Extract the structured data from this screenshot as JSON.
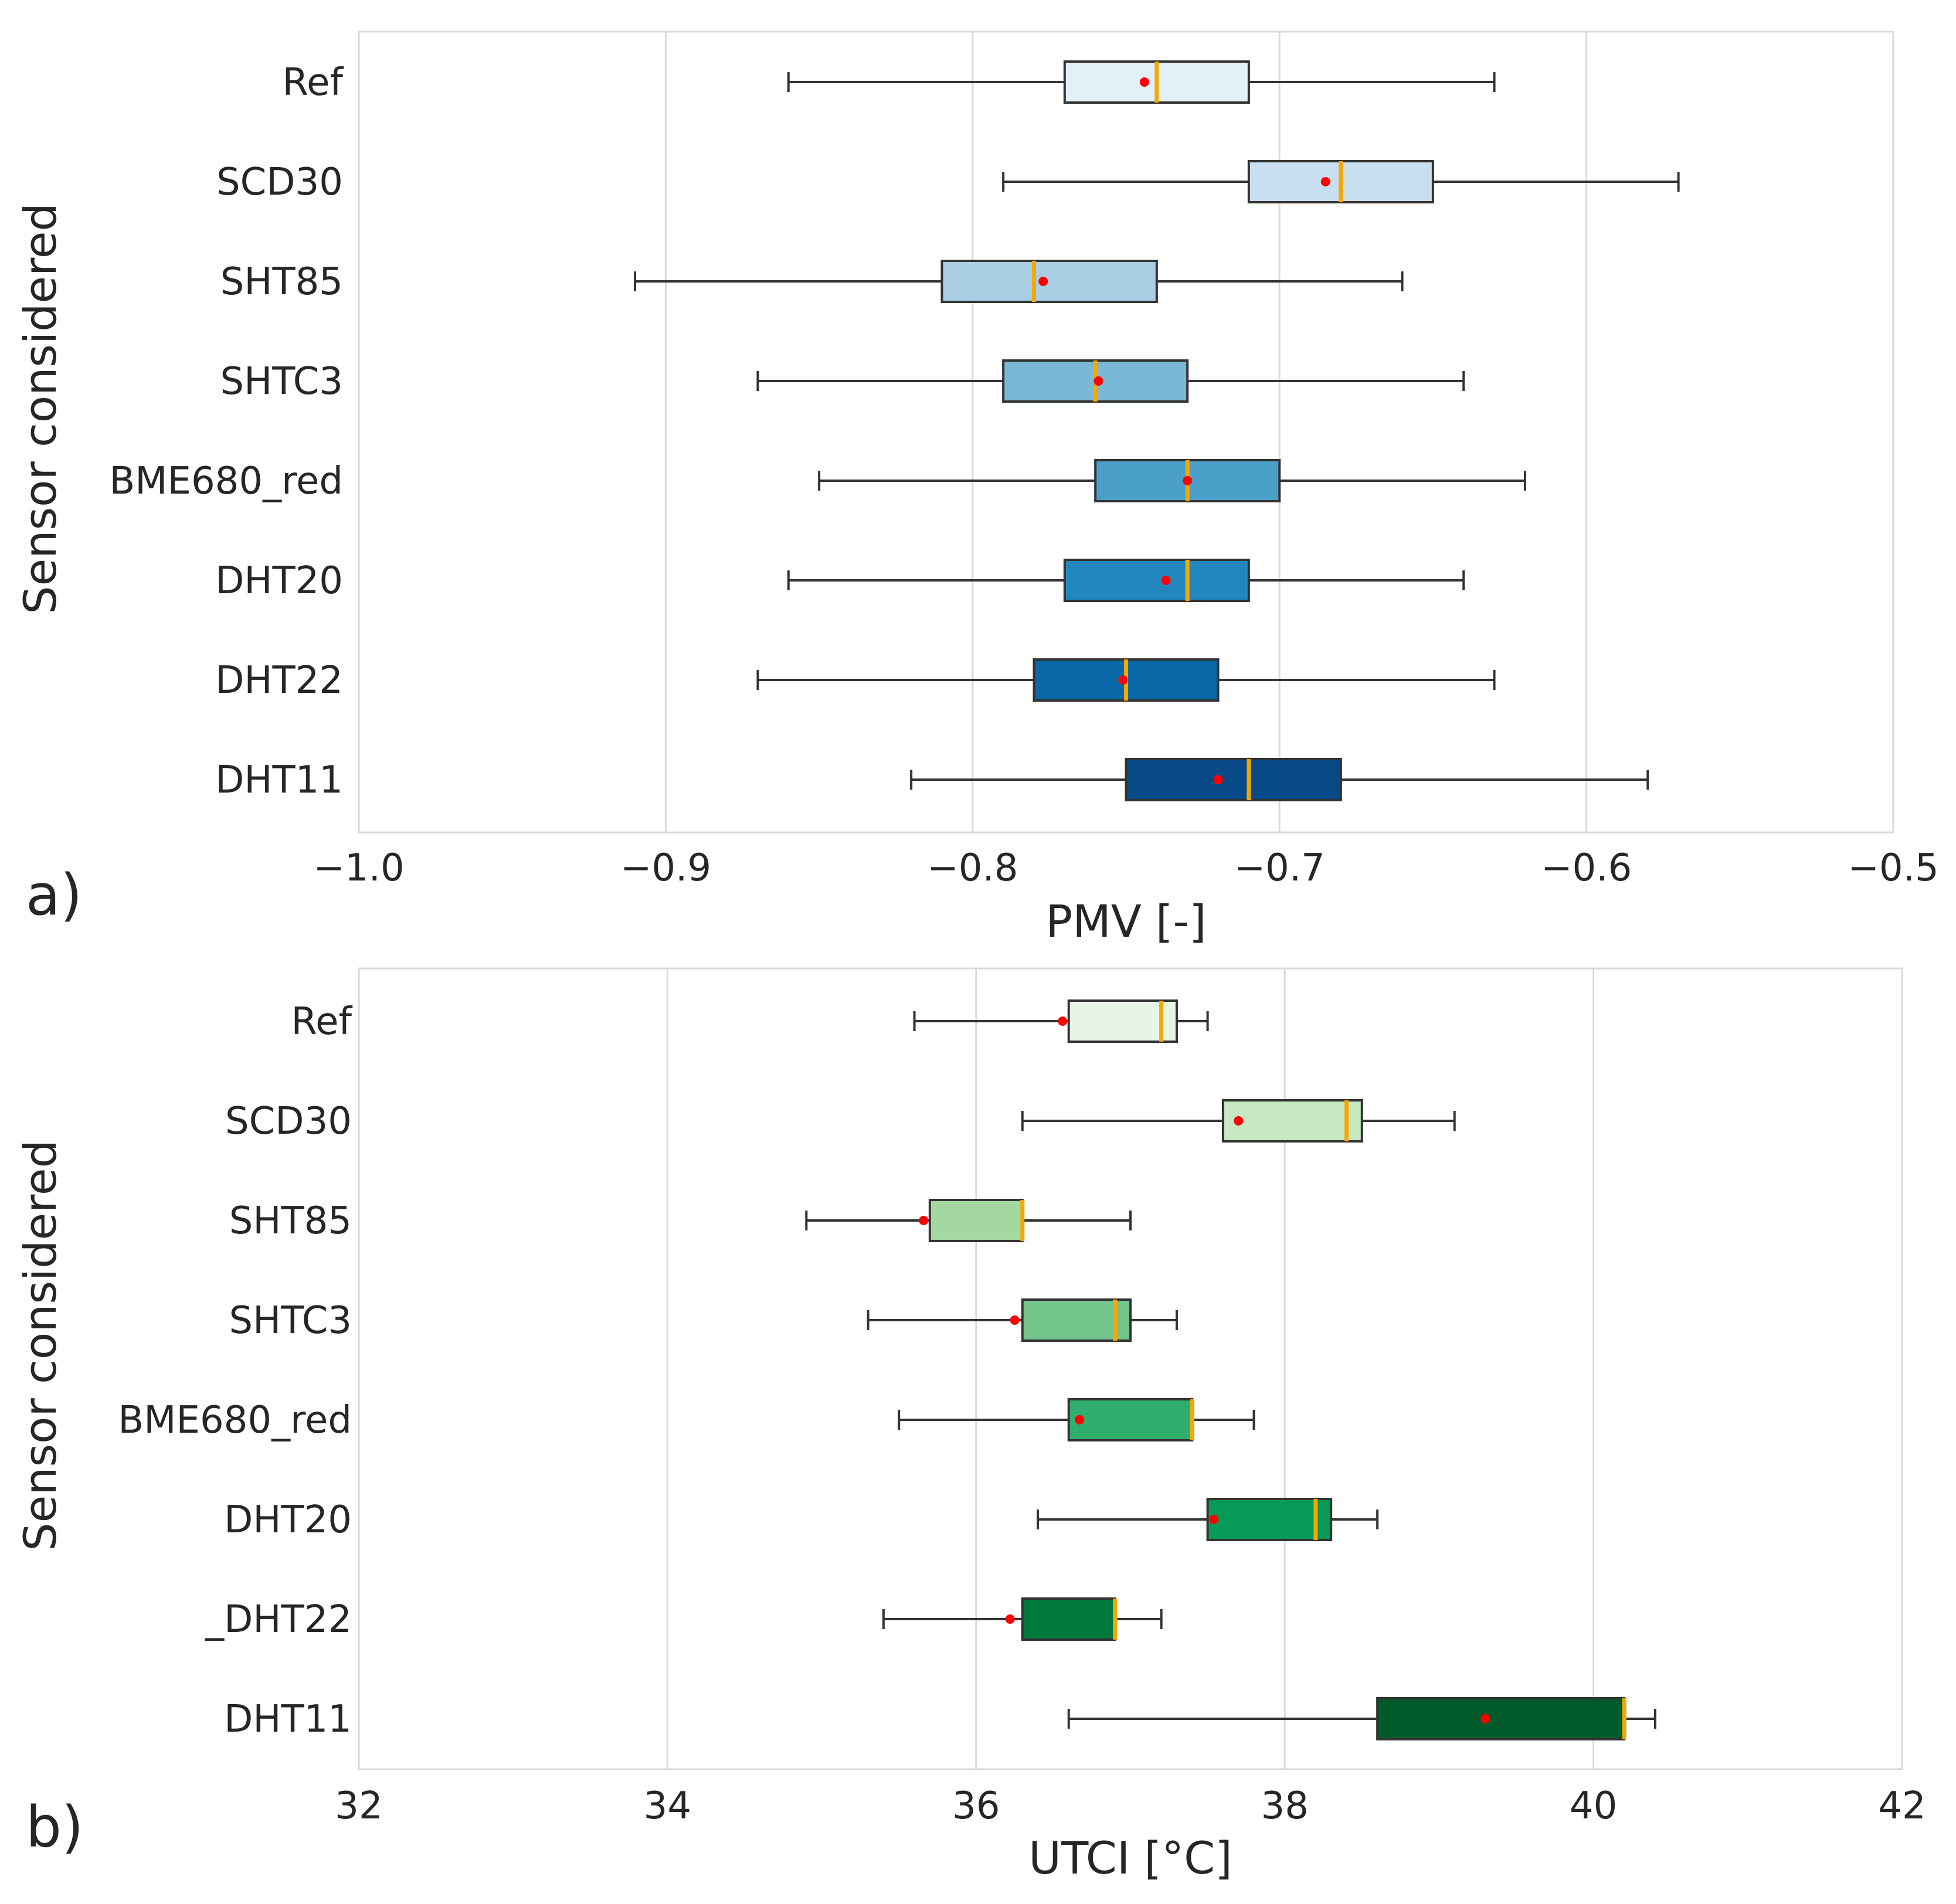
{
  "chart_data": [
    {
      "type": "box",
      "panel_label": "a)",
      "orientation": "horizontal",
      "xlabel": "PMV [-]",
      "ylabel": "Sensor considered",
      "xlim": [
        -1.0,
        -0.5
      ],
      "xticks": [
        -1.0,
        -0.9,
        -0.8,
        -0.7,
        -0.6,
        -0.5
      ],
      "xtick_labels": [
        "−1.0",
        "−0.9",
        "−0.8",
        "−0.7",
        "−0.6",
        "−0.5"
      ],
      "grid": "vertical",
      "palette": "blues",
      "categories": [
        "Ref",
        "SCD30",
        "SHT85",
        "SHTC3",
        "BME680_red",
        "DHT20",
        "DHT22",
        "DHT11"
      ],
      "boxes": [
        {
          "name": "Ref",
          "whisker_low": -0.86,
          "q1": -0.77,
          "median": -0.74,
          "q3": -0.71,
          "whisker_high": -0.63,
          "mean": -0.744,
          "color": "#e3f0f7"
        },
        {
          "name": "SCD30",
          "whisker_low": -0.79,
          "q1": -0.71,
          "median": -0.68,
          "q3": -0.65,
          "whisker_high": -0.57,
          "mean": -0.685,
          "color": "#c9dff0"
        },
        {
          "name": "SHT85",
          "whisker_low": -0.91,
          "q1": -0.81,
          "median": -0.78,
          "q3": -0.74,
          "whisker_high": -0.66,
          "mean": -0.777,
          "color": "#a9cde3"
        },
        {
          "name": "SHTC3",
          "whisker_low": -0.87,
          "q1": -0.79,
          "median": -0.76,
          "q3": -0.73,
          "whisker_high": -0.64,
          "mean": -0.759,
          "color": "#7ab8d6"
        },
        {
          "name": "BME680_red",
          "whisker_low": -0.85,
          "q1": -0.76,
          "median": -0.73,
          "q3": -0.7,
          "whisker_high": -0.62,
          "mean": -0.73,
          "color": "#4aa0c9"
        },
        {
          "name": "DHT20",
          "whisker_low": -0.86,
          "q1": -0.77,
          "median": -0.73,
          "q3": -0.71,
          "whisker_high": -0.64,
          "mean": -0.737,
          "color": "#2287bf"
        },
        {
          "name": "DHT22",
          "whisker_low": -0.87,
          "q1": -0.78,
          "median": -0.75,
          "q3": -0.72,
          "whisker_high": -0.63,
          "mean": -0.751,
          "color": "#0868a8"
        },
        {
          "name": "DHT11",
          "whisker_low": -0.82,
          "q1": -0.75,
          "median": -0.71,
          "q3": -0.68,
          "whisker_high": -0.58,
          "mean": -0.72,
          "color": "#084a88"
        }
      ]
    },
    {
      "type": "box",
      "panel_label": "b)",
      "orientation": "horizontal",
      "xlabel": "UTCI [°C]",
      "ylabel": "Sensor considered",
      "xlim": [
        32,
        42
      ],
      "xticks": [
        32,
        34,
        36,
        38,
        40,
        42
      ],
      "xtick_labels": [
        "32",
        "34",
        "36",
        "38",
        "40",
        "42"
      ],
      "grid": "vertical",
      "palette": "greens",
      "categories": [
        "Ref",
        "SCD30",
        "SHT85",
        "SHTC3",
        "BME680_red",
        "DHT20",
        "_DHT22",
        "DHT11"
      ],
      "boxes": [
        {
          "name": "Ref",
          "whisker_low": 35.6,
          "q1": 36.6,
          "median": 37.2,
          "q3": 37.3,
          "whisker_high": 37.5,
          "mean": 36.56,
          "color": "#e8f5e6"
        },
        {
          "name": "SCD30",
          "whisker_low": 36.3,
          "q1": 37.6,
          "median": 38.4,
          "q3": 38.5,
          "whisker_high": 39.1,
          "mean": 37.7,
          "color": "#c6e8c2"
        },
        {
          "name": "SHT85",
          "whisker_low": 34.9,
          "q1": 35.7,
          "median": 36.3,
          "q3": 36.3,
          "whisker_high": 37.0,
          "mean": 35.66,
          "color": "#a3d9a0"
        },
        {
          "name": "SHTC3",
          "whisker_low": 35.3,
          "q1": 36.3,
          "median": 36.9,
          "q3": 37.0,
          "whisker_high": 37.3,
          "mean": 36.25,
          "color": "#73c48b"
        },
        {
          "name": "BME680_red",
          "whisker_low": 35.5,
          "q1": 36.6,
          "median": 37.4,
          "q3": 37.4,
          "whisker_high": 37.8,
          "mean": 36.67,
          "color": "#2fae6d"
        },
        {
          "name": "DHT20",
          "whisker_low": 36.4,
          "q1": 37.5,
          "median": 38.2,
          "q3": 38.3,
          "whisker_high": 38.6,
          "mean": 37.54,
          "color": "#079a56"
        },
        {
          "name": "_DHT22",
          "whisker_low": 35.4,
          "q1": 36.3,
          "median": 36.9,
          "q3": 36.9,
          "whisker_high": 37.2,
          "mean": 36.22,
          "color": "#007a3d"
        },
        {
          "name": "DHT11",
          "whisker_low": 36.6,
          "q1": 38.6,
          "median": 40.2,
          "q3": 40.2,
          "whisker_high": 40.4,
          "mean": 39.3,
          "color": "#005a2a"
        }
      ]
    }
  ],
  "style": {
    "grid_color": "#d9d9d9",
    "frame_color": "#d9d9d9",
    "median_color": "#f5a800",
    "mean_color": "#ff0000",
    "line_color": "#333333"
  }
}
